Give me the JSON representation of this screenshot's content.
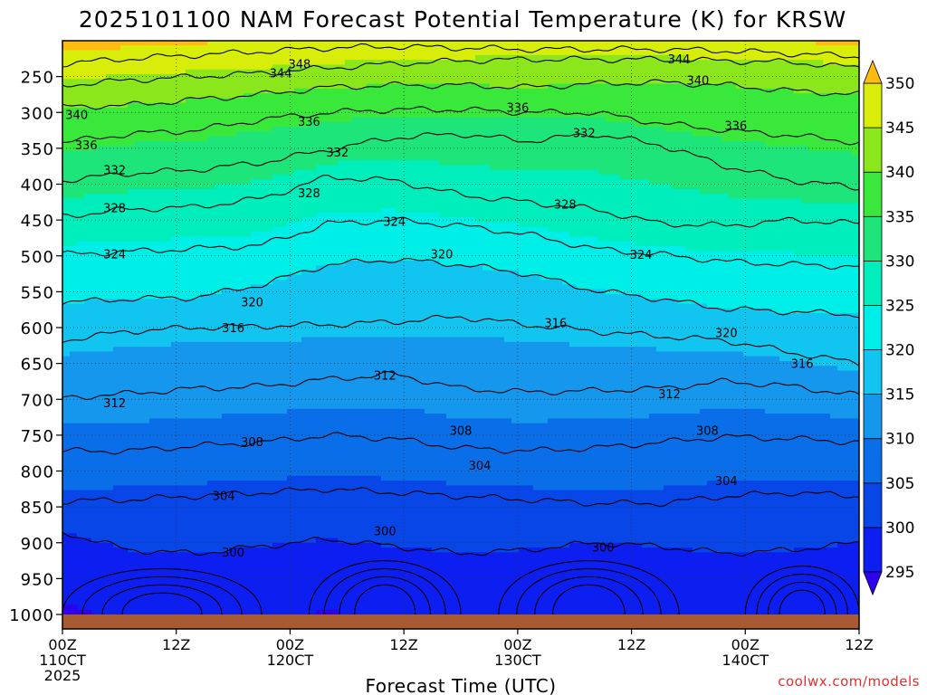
{
  "chart_data": {
    "type": "heatmap",
    "title": "2025101100 NAM Forecast Potential Temperature (K) for KRSW",
    "xlabel": "Forecast Time (UTC)",
    "ylabel": "",
    "x_ticks": [
      {
        "hour": 0,
        "lines": [
          "00Z",
          "110CT",
          "2025"
        ]
      },
      {
        "hour": 12,
        "lines": [
          "12Z"
        ]
      },
      {
        "hour": 24,
        "lines": [
          "00Z",
          "120CT"
        ]
      },
      {
        "hour": 36,
        "lines": [
          "12Z"
        ]
      },
      {
        "hour": 48,
        "lines": [
          "00Z",
          "130CT"
        ]
      },
      {
        "hour": 60,
        "lines": [
          "12Z"
        ]
      },
      {
        "hour": 72,
        "lines": [
          "00Z",
          "140CT"
        ]
      },
      {
        "hour": 84,
        "lines": [
          "12Z"
        ]
      }
    ],
    "xlim": [
      0,
      84
    ],
    "y_ticks": [
      250,
      300,
      350,
      400,
      450,
      500,
      550,
      600,
      650,
      700,
      750,
      800,
      850,
      900,
      950,
      1000
    ],
    "ylim_hpa": [
      200,
      1000
    ],
    "colorbar": {
      "ticks": [
        295,
        300,
        305,
        310,
        315,
        320,
        325,
        330,
        335,
        340,
        345,
        350
      ],
      "colors": [
        "#2f00ee",
        "#0d1ff0",
        "#0846e8",
        "#0a6ee8",
        "#1697ee",
        "#12c4f0",
        "#00eee8",
        "#00eebb",
        "#1ee57a",
        "#39e83a",
        "#8ce61c",
        "#d8ee0a",
        "#ffee00",
        "#ffbc10"
      ]
    },
    "contour_levels": [
      300,
      304,
      308,
      312,
      316,
      320,
      324,
      328,
      332,
      336,
      340,
      344,
      348
    ],
    "series": [
      {
        "name": "300",
        "values": [
          885,
          910,
          915,
          905,
          895,
          905,
          915,
          910,
          900,
          905,
          915,
          910,
          900
        ]
      },
      {
        "name": "304",
        "values": [
          842,
          840,
          835,
          830,
          825,
          830,
          835,
          840,
          845,
          845,
          835,
          830,
          835
        ]
      },
      {
        "name": "308",
        "values": [
          772,
          772,
          765,
          760,
          750,
          755,
          768,
          772,
          768,
          760,
          752,
          755,
          760
        ]
      },
      {
        "name": "312",
        "values": [
          698,
          692,
          685,
          682,
          672,
          665,
          685,
          690,
          688,
          685,
          675,
          682,
          695
        ]
      },
      {
        "name": "316",
        "values": [
          618,
          605,
          600,
          598,
          596,
          592,
          585,
          596,
          605,
          612,
          618,
          635,
          650
        ]
      },
      {
        "name": "320",
        "values": [
          565,
          560,
          558,
          540,
          512,
          505,
          512,
          525,
          548,
          560,
          574,
          578,
          582
        ]
      },
      {
        "name": "324",
        "values": [
          498,
          494,
          490,
          485,
          455,
          450,
          458,
          470,
          490,
          498,
          508,
          512,
          515
        ]
      },
      {
        "name": "328",
        "values": [
          445,
          435,
          432,
          420,
          390,
          395,
          415,
          425,
          435,
          455,
          458,
          450,
          455
        ]
      },
      {
        "name": "332",
        "values": [
          395,
          385,
          380,
          370,
          352,
          335,
          330,
          340,
          330,
          345,
          375,
          395,
          405
        ]
      },
      {
        "name": "336",
        "values": [
          342,
          330,
          325,
          310,
          300,
          296,
          296,
          300,
          300,
          315,
          325,
          332,
          342
        ]
      },
      {
        "name": "340",
        "values": [
          292,
          290,
          282,
          275,
          265,
          262,
          262,
          265,
          260,
          258,
          262,
          270,
          275
        ]
      },
      {
        "name": "344",
        "values": [
          262,
          255,
          250,
          245,
          238,
          232,
          228,
          226,
          226,
          226,
          228,
          230,
          238
        ]
      },
      {
        "name": "348",
        "values": [
          232,
          225,
          220,
          215,
          210,
          208,
          210,
          212,
          212,
          212,
          214,
          218,
          222
        ]
      }
    ],
    "series_hours": [
      0,
      7,
      14,
      21,
      28,
      35,
      42,
      49,
      56,
      63,
      70,
      77,
      84
    ],
    "contour_labels": [
      {
        "text": "348",
        "hour": 25,
        "hpa": 232
      },
      {
        "text": "344",
        "hour": 23,
        "hpa": 245
      },
      {
        "text": "344",
        "hour": 65,
        "hpa": 225
      },
      {
        "text": "340",
        "hour": 1.5,
        "hpa": 303
      },
      {
        "text": "340",
        "hour": 67,
        "hpa": 255
      },
      {
        "text": "336",
        "hour": 2.5,
        "hpa": 345
      },
      {
        "text": "336",
        "hour": 26,
        "hpa": 312
      },
      {
        "text": "336",
        "hour": 48,
        "hpa": 293
      },
      {
        "text": "336",
        "hour": 71,
        "hpa": 318
      },
      {
        "text": "332",
        "hour": 5.5,
        "hpa": 380
      },
      {
        "text": "332",
        "hour": 29,
        "hpa": 355
      },
      {
        "text": "332",
        "hour": 55,
        "hpa": 328
      },
      {
        "text": "328",
        "hour": 5.5,
        "hpa": 433
      },
      {
        "text": "328",
        "hour": 26,
        "hpa": 412
      },
      {
        "text": "328",
        "hour": 53,
        "hpa": 428
      },
      {
        "text": "324",
        "hour": 5.5,
        "hpa": 497
      },
      {
        "text": "324",
        "hour": 35,
        "hpa": 452
      },
      {
        "text": "324",
        "hour": 61,
        "hpa": 498
      },
      {
        "text": "320",
        "hour": 20,
        "hpa": 564
      },
      {
        "text": "320",
        "hour": 40,
        "hpa": 497
      },
      {
        "text": "320",
        "hour": 70,
        "hpa": 607
      },
      {
        "text": "316",
        "hour": 18,
        "hpa": 600
      },
      {
        "text": "316",
        "hour": 52,
        "hpa": 593
      },
      {
        "text": "316",
        "hour": 78,
        "hpa": 650
      },
      {
        "text": "312",
        "hour": 5.5,
        "hpa": 705
      },
      {
        "text": "312",
        "hour": 34,
        "hpa": 666
      },
      {
        "text": "312",
        "hour": 64,
        "hpa": 692
      },
      {
        "text": "308",
        "hour": 20,
        "hpa": 759
      },
      {
        "text": "308",
        "hour": 42,
        "hpa": 743
      },
      {
        "text": "308",
        "hour": 68,
        "hpa": 743
      },
      {
        "text": "304",
        "hour": 17,
        "hpa": 834
      },
      {
        "text": "304",
        "hour": 44,
        "hpa": 792
      },
      {
        "text": "304",
        "hour": 70,
        "hpa": 813
      },
      {
        "text": "300",
        "hour": 18,
        "hpa": 913
      },
      {
        "text": "300",
        "hour": 34,
        "hpa": 883
      },
      {
        "text": "300",
        "hour": 57,
        "hpa": 906
      }
    ],
    "cold_pools": [
      {
        "start": 0,
        "end": 21,
        "top": 915,
        "min": 296
      },
      {
        "start": 26,
        "end": 42,
        "top": 900,
        "min": 297
      },
      {
        "start": 46,
        "end": 65,
        "top": 900,
        "min": 297
      },
      {
        "start": 72,
        "end": 84,
        "top": 910,
        "min": 298
      }
    ],
    "credit": "coolwx.com/models"
  }
}
